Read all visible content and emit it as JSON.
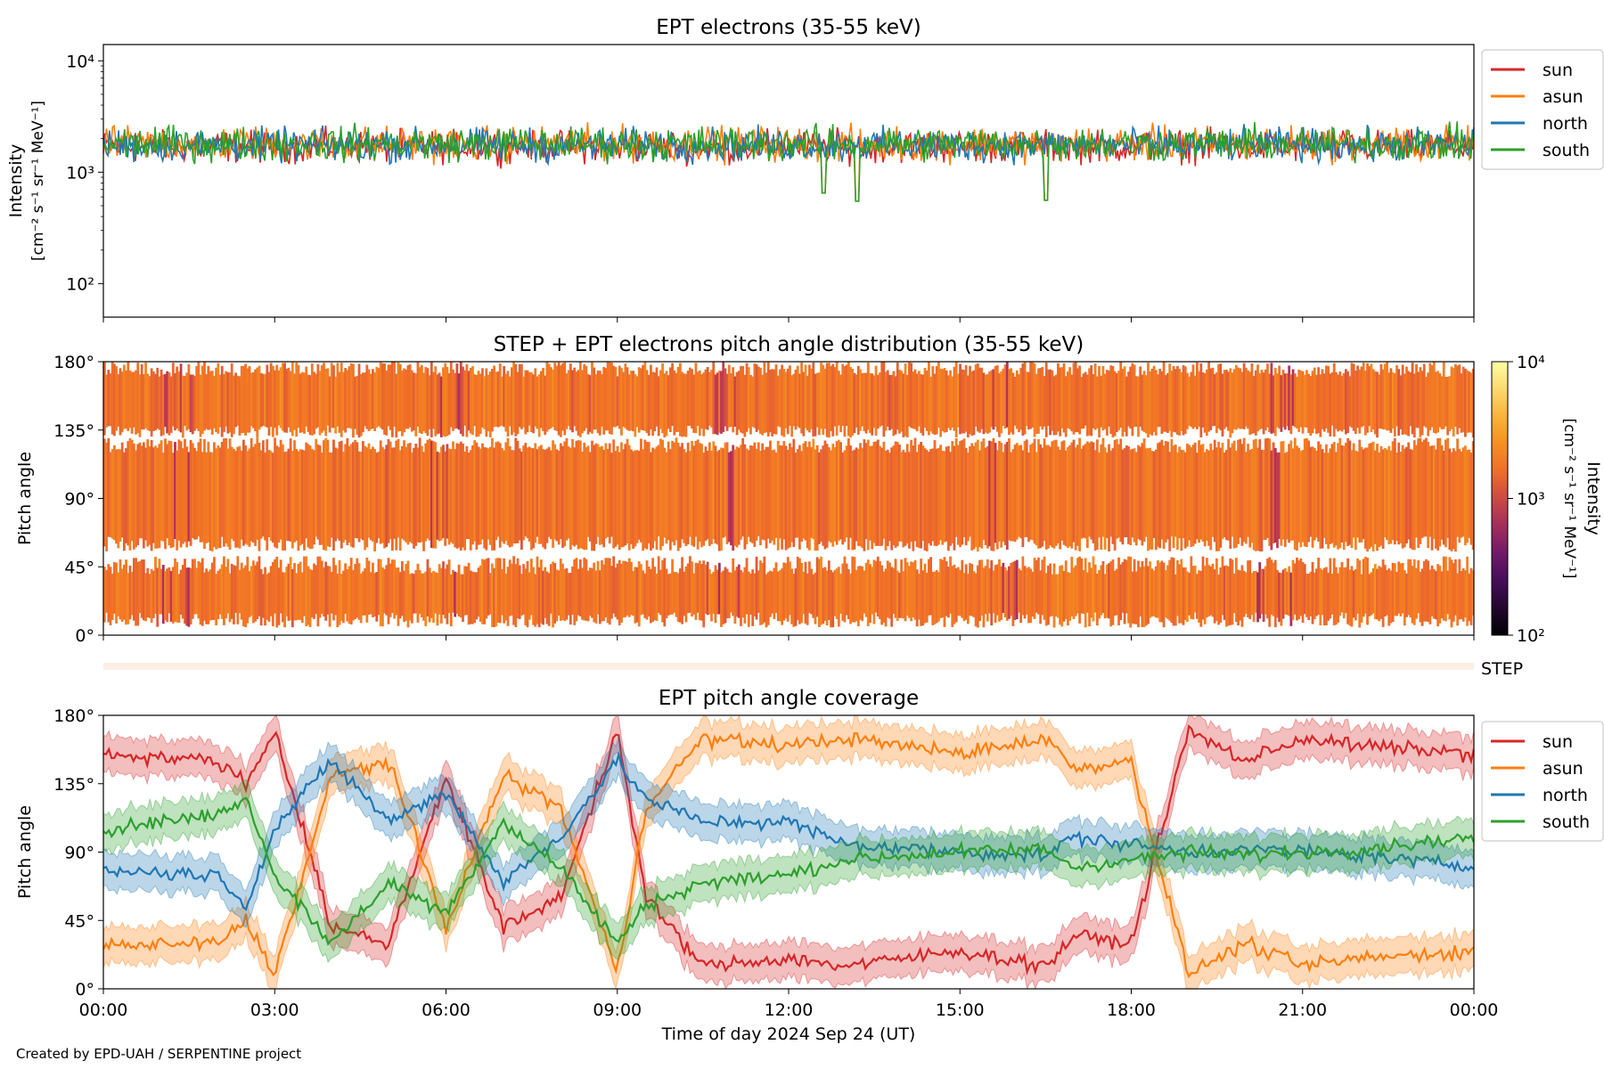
{
  "footer": "Created by EPD-UAH / SERPENTINE project",
  "chart_data": [
    {
      "type": "line",
      "title": "EPT electrons (35-55 keV)",
      "ylabel_line1": "Intensity",
      "ylabel_line2": "[cm⁻² s⁻¹ sr⁻¹ MeV⁻¹]",
      "yscale": "log",
      "ylim": [
        50,
        14000
      ],
      "yticks": [
        {
          "v": 100,
          "label": "10²"
        },
        {
          "v": 1000,
          "label": "10³"
        },
        {
          "v": 10000,
          "label": "10⁴"
        }
      ],
      "xlim_hours": [
        0,
        24
      ],
      "legend": "outside-right",
      "series": [
        {
          "name": "sun",
          "color": "#d62728",
          "typical": 1700,
          "noise": 0.22
        },
        {
          "name": "asun",
          "color": "#ff7f0e",
          "typical": 1800,
          "noise": 0.24
        },
        {
          "name": "north",
          "color": "#1f77b4",
          "typical": 1750,
          "noise": 0.23
        },
        {
          "name": "south",
          "color": "#2ca02c",
          "typical": 1800,
          "noise": 0.24
        }
      ],
      "dips": [
        {
          "hour": 13.2,
          "value": 550
        },
        {
          "hour": 16.5,
          "value": 560
        },
        {
          "hour": 12.6,
          "value": 650
        }
      ]
    },
    {
      "type": "heatmap",
      "title": "STEP + EPT electrons pitch angle distribution (35-55 keV)",
      "ylabel": "Pitch angle",
      "ylim": [
        0,
        180
      ],
      "yticks": [
        0,
        45,
        90,
        135,
        180
      ],
      "colorbar_label_line1": "Intensity",
      "colorbar_label_line2": "[cm⁻² s⁻¹ sr⁻¹ MeV⁻¹]",
      "colorbar_scale": "log",
      "colorbar_range": [
        100,
        10000
      ],
      "colorbar_ticks": [
        {
          "v": 100,
          "label": "10²"
        },
        {
          "v": 1000,
          "label": "10³"
        },
        {
          "v": 10000,
          "label": "10⁴"
        }
      ],
      "colormap": "inferno",
      "typical_intensity": 1700,
      "step_label": "STEP"
    },
    {
      "type": "line",
      "title": "EPT pitch angle coverage",
      "ylabel": "Pitch angle",
      "xlabel": "Time of day 2024 Sep 24 (UT)",
      "ylim": [
        0,
        180
      ],
      "yticks": [
        0,
        45,
        90,
        135,
        180
      ],
      "xlim_hours": [
        0,
        24
      ],
      "xticks": [
        {
          "h": 0,
          "label": "00:00"
        },
        {
          "h": 3,
          "label": "03:00"
        },
        {
          "h": 6,
          "label": "06:00"
        },
        {
          "h": 9,
          "label": "09:00"
        },
        {
          "h": 12,
          "label": "12:00"
        },
        {
          "h": 15,
          "label": "15:00"
        },
        {
          "h": 18,
          "label": "18:00"
        },
        {
          "h": 21,
          "label": "21:00"
        },
        {
          "h": 24,
          "label": "00:00"
        }
      ],
      "legend": "outside-right",
      "band_halfwidth_deg": 12,
      "series": [
        {
          "name": "sun",
          "color": "#d62728",
          "anchors": [
            [
              0,
              155
            ],
            [
              2,
              150
            ],
            [
              2.5,
              135
            ],
            [
              3,
              170
            ],
            [
              4,
              40
            ],
            [
              5,
              30
            ],
            [
              6,
              140
            ],
            [
              7,
              40
            ],
            [
              8,
              60
            ],
            [
              9,
              170
            ],
            [
              9.5,
              60
            ],
            [
              10.5,
              15
            ],
            [
              12,
              20
            ],
            [
              13,
              15
            ],
            [
              15,
              25
            ],
            [
              16.5,
              15
            ],
            [
              17,
              35
            ],
            [
              18,
              30
            ],
            [
              19,
              170
            ],
            [
              20,
              150
            ],
            [
              21,
              165
            ],
            [
              22,
              160
            ],
            [
              24,
              155
            ]
          ]
        },
        {
          "name": "asun",
          "color": "#ff7f0e",
          "anchors": [
            [
              0,
              28
            ],
            [
              2,
              30
            ],
            [
              2.5,
              45
            ],
            [
              3,
              10
            ],
            [
              4,
              140
            ],
            [
              5,
              150
            ],
            [
              6,
              40
            ],
            [
              7,
              140
            ],
            [
              8,
              120
            ],
            [
              9,
              10
            ],
            [
              9.5,
              120
            ],
            [
              10.5,
              165
            ],
            [
              12,
              160
            ],
            [
              13,
              165
            ],
            [
              15,
              155
            ],
            [
              16.5,
              165
            ],
            [
              17,
              145
            ],
            [
              18,
              150
            ],
            [
              19,
              10
            ],
            [
              20,
              30
            ],
            [
              21,
              15
            ],
            [
              22,
              20
            ],
            [
              24,
              25
            ]
          ]
        },
        {
          "name": "north",
          "color": "#1f77b4",
          "anchors": [
            [
              0,
              78
            ],
            [
              2,
              75
            ],
            [
              2.5,
              55
            ],
            [
              3,
              105
            ],
            [
              4,
              150
            ],
            [
              5,
              110
            ],
            [
              6,
              130
            ],
            [
              7,
              70
            ],
            [
              8,
              100
            ],
            [
              9,
              150
            ],
            [
              9.5,
              125
            ],
            [
              10.5,
              110
            ],
            [
              12,
              110
            ],
            [
              13,
              95
            ],
            [
              15,
              90
            ],
            [
              16.5,
              88
            ],
            [
              17,
              100
            ],
            [
              18,
              95
            ],
            [
              19,
              90
            ],
            [
              20,
              92
            ],
            [
              21,
              90
            ],
            [
              22,
              88
            ],
            [
              24,
              80
            ]
          ]
        },
        {
          "name": "south",
          "color": "#2ca02c",
          "anchors": [
            [
              0,
              105
            ],
            [
              2,
              115
            ],
            [
              2.5,
              125
            ],
            [
              3,
              75
            ],
            [
              4,
              30
            ],
            [
              5,
              70
            ],
            [
              6,
              50
            ],
            [
              7,
              110
            ],
            [
              8,
              80
            ],
            [
              9,
              30
            ],
            [
              9.5,
              55
            ],
            [
              10.5,
              70
            ],
            [
              12,
              75
            ],
            [
              13,
              85
            ],
            [
              15,
              90
            ],
            [
              16.5,
              92
            ],
            [
              17,
              80
            ],
            [
              18,
              85
            ],
            [
              19,
              90
            ],
            [
              20,
              88
            ],
            [
              21,
              90
            ],
            [
              22,
              92
            ],
            [
              24,
              100
            ]
          ]
        }
      ]
    }
  ]
}
